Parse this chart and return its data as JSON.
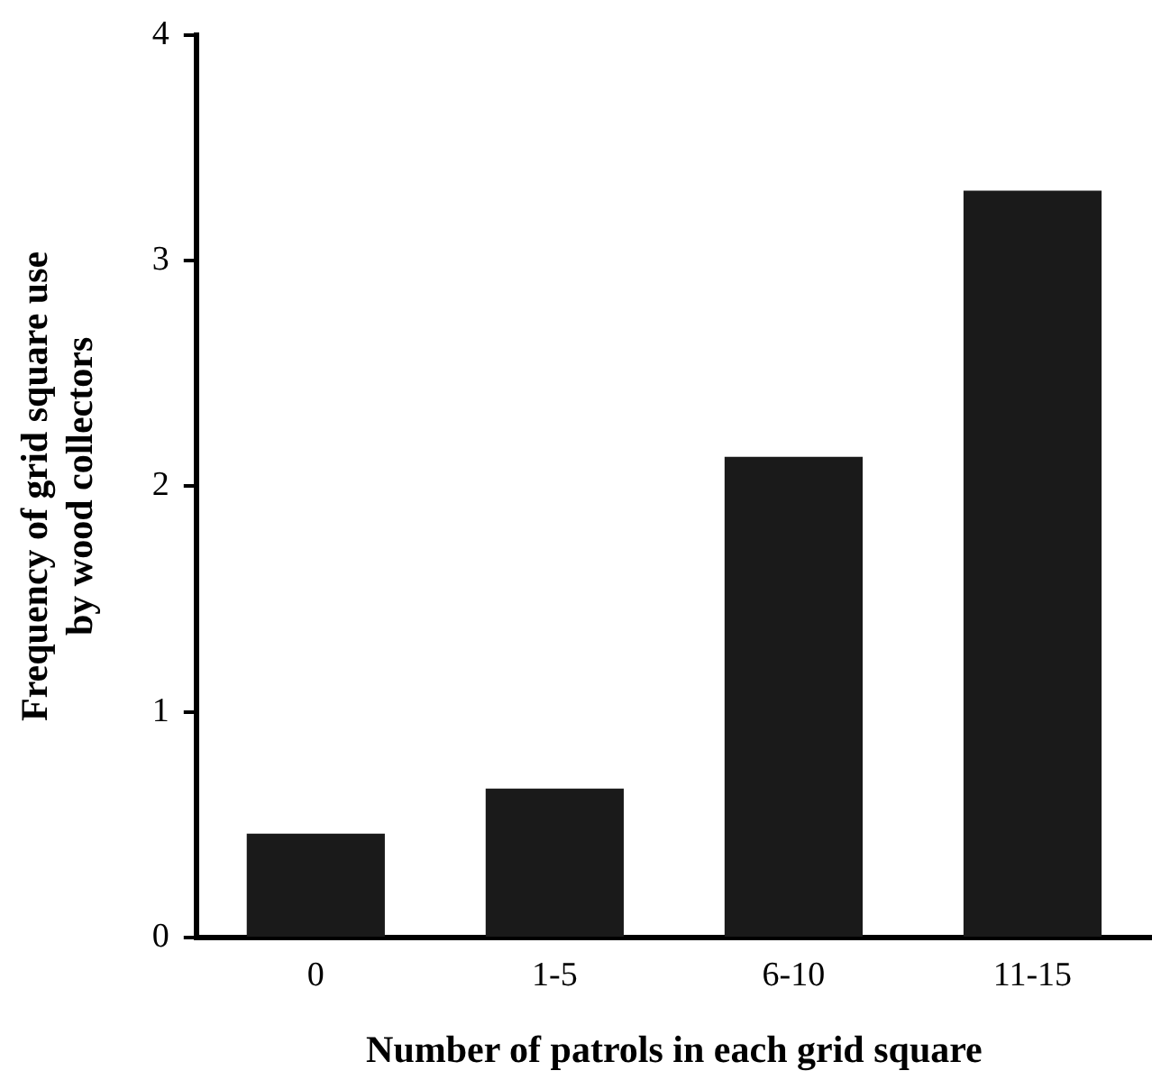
{
  "chart_data": {
    "type": "bar",
    "xlabel": "Number of patrols in each grid square",
    "ylabel": "Frequency of grid square use\nby wood collectors",
    "categories": [
      "0",
      "1-5",
      "6-10",
      "11-15"
    ],
    "values": [
      0.46,
      0.66,
      2.13,
      3.31
    ],
    "color": "#1a1a1a",
    "ylim": [
      0,
      4
    ],
    "yticks": [
      0,
      1,
      2,
      3,
      4
    ],
    "grid": false,
    "legend": false
  }
}
